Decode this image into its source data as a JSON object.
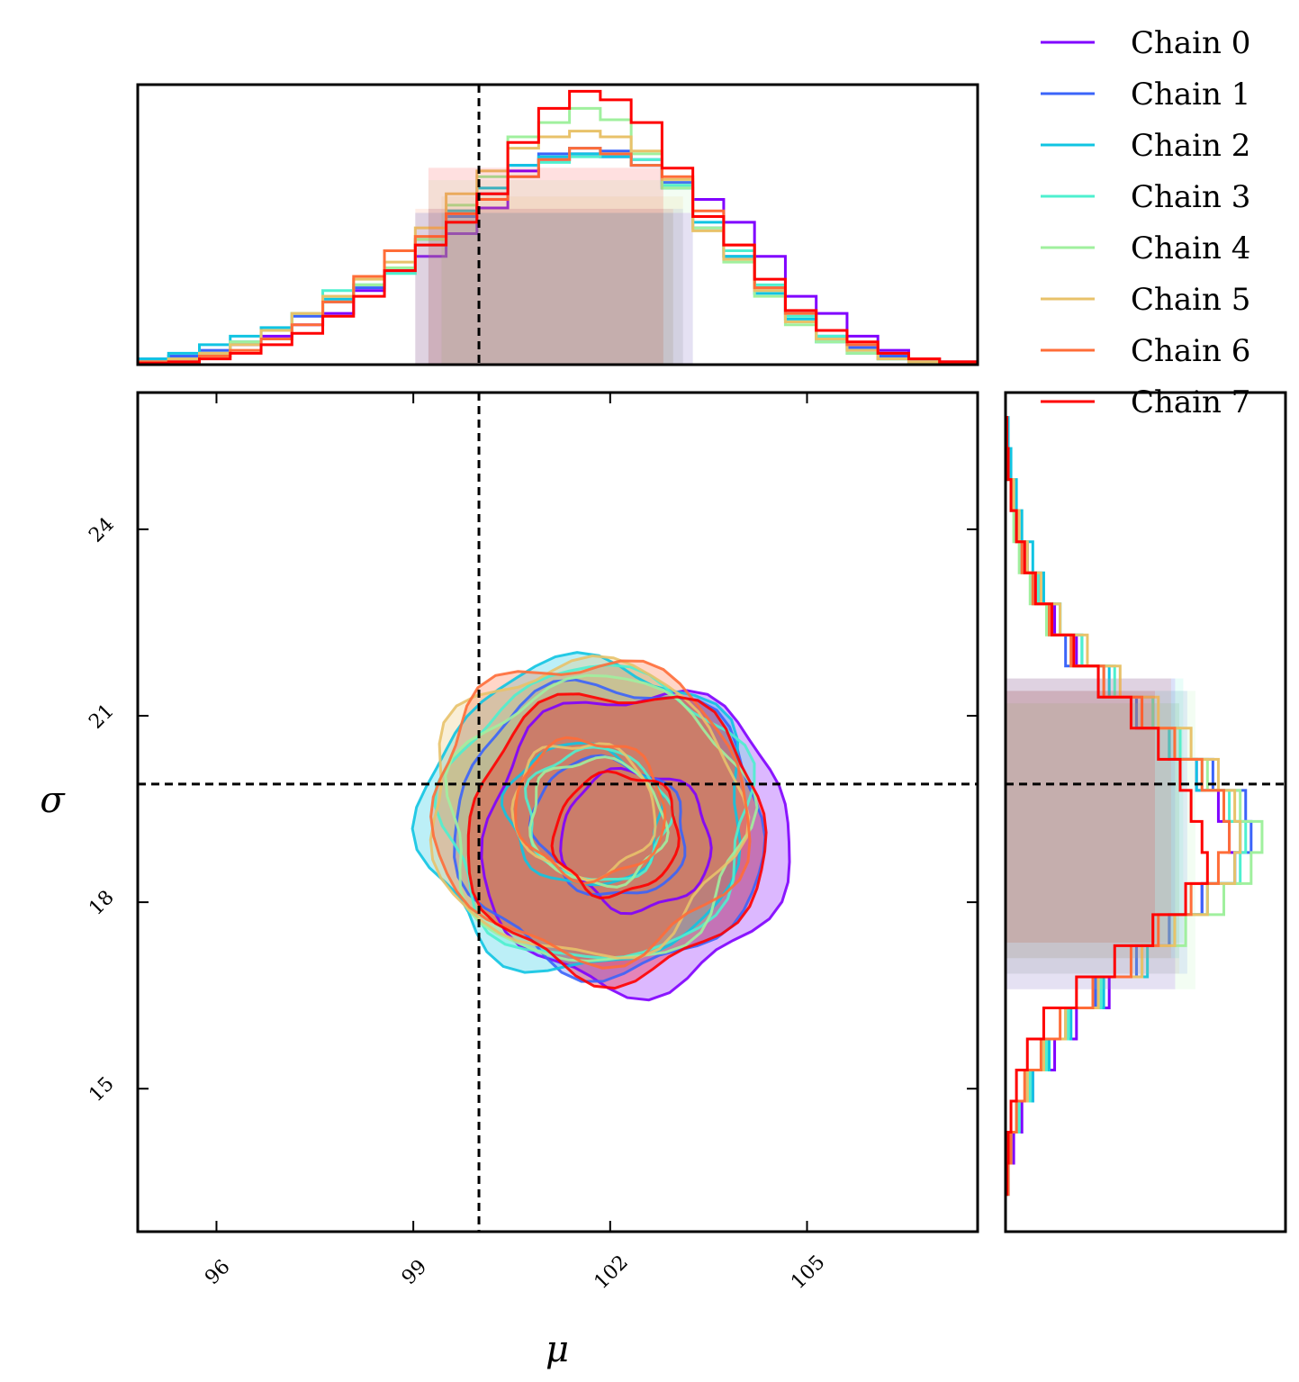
{
  "chart_data": {
    "type": "corner",
    "truth": {
      "mu": 100,
      "sigma": 19.9
    },
    "axes": {
      "mu": {
        "label": "μ",
        "range": [
          94.8,
          107.6
        ],
        "ticks": [
          "96",
          "99",
          "102",
          "105"
        ],
        "tick_values": [
          96,
          99,
          102,
          105
        ]
      },
      "sigma": {
        "label": "σ",
        "range": [
          12.7,
          26.2
        ],
        "ticks": [
          "15",
          "18",
          "21",
          "24"
        ],
        "tick_values": [
          15,
          18,
          21,
          24
        ]
      }
    },
    "legend": {
      "placement": "top-right",
      "entries": [
        "Chain 0",
        "Chain 1",
        "Chain 2",
        "Chain 3",
        "Chain 4",
        "Chain 5",
        "Chain 6",
        "Chain 7"
      ]
    },
    "colors": [
      "#8000ff",
      "#3b64f9",
      "#10c4e2",
      "#4ef0cf",
      "#a0f09e",
      "#e8c26a",
      "#ff6d38",
      "#ff0000"
    ],
    "mu_hist_edges": [
      94.8,
      95.27,
      95.74,
      96.21,
      96.68,
      97.15,
      97.62,
      98.09,
      98.56,
      99.03,
      99.5,
      99.97,
      100.44,
      100.91,
      101.38,
      101.85,
      102.32,
      102.79,
      103.26,
      103.73,
      104.2,
      104.67,
      105.14,
      105.61,
      106.08,
      106.55,
      107.02,
      107.6
    ],
    "mu_hist": [
      {
        "name": "Chain 0",
        "values": [
          0.01,
          0.02,
          0.04,
          0.07,
          0.1,
          0.14,
          0.18,
          0.26,
          0.33,
          0.38,
          0.46,
          0.55,
          0.68,
          0.72,
          0.74,
          0.73,
          0.7,
          0.62,
          0.58,
          0.5,
          0.38,
          0.24,
          0.18,
          0.1,
          0.05,
          0.02,
          0.01
        ]
      },
      {
        "name": "Chain 1",
        "values": [
          0.02,
          0.03,
          0.05,
          0.08,
          0.12,
          0.17,
          0.22,
          0.27,
          0.33,
          0.42,
          0.52,
          0.6,
          0.7,
          0.74,
          0.76,
          0.75,
          0.72,
          0.64,
          0.48,
          0.38,
          0.27,
          0.18,
          0.1,
          0.06,
          0.03,
          0.01,
          0.005
        ]
      },
      {
        "name": "Chain 2",
        "values": [
          0.02,
          0.04,
          0.07,
          0.1,
          0.13,
          0.18,
          0.23,
          0.28,
          0.34,
          0.44,
          0.54,
          0.62,
          0.7,
          0.73,
          0.74,
          0.73,
          0.7,
          0.62,
          0.5,
          0.38,
          0.25,
          0.16,
          0.08,
          0.04,
          0.02,
          0.01,
          0.005
        ]
      },
      {
        "name": "Chain 3",
        "values": [
          0.01,
          0.02,
          0.04,
          0.08,
          0.12,
          0.18,
          0.26,
          0.28,
          0.32,
          0.42,
          0.5,
          0.58,
          0.66,
          0.71,
          0.73,
          0.74,
          0.72,
          0.63,
          0.52,
          0.4,
          0.28,
          0.17,
          0.1,
          0.05,
          0.02,
          0.01,
          0.005
        ]
      },
      {
        "name": "Chain 4",
        "values": [
          0.01,
          0.02,
          0.04,
          0.08,
          0.12,
          0.18,
          0.24,
          0.28,
          0.34,
          0.44,
          0.56,
          0.66,
          0.8,
          0.85,
          0.9,
          0.86,
          0.74,
          0.62,
          0.48,
          0.36,
          0.24,
          0.14,
          0.08,
          0.04,
          0.02,
          0.01,
          0.005
        ]
      },
      {
        "name": "Chain 5",
        "values": [
          0.01,
          0.02,
          0.04,
          0.07,
          0.12,
          0.18,
          0.24,
          0.3,
          0.36,
          0.48,
          0.6,
          0.68,
          0.76,
          0.8,
          0.82,
          0.8,
          0.75,
          0.65,
          0.47,
          0.37,
          0.26,
          0.15,
          0.09,
          0.05,
          0.02,
          0.01,
          0.005
        ]
      },
      {
        "name": "Chain 6",
        "values": [
          0.01,
          0.01,
          0.03,
          0.05,
          0.09,
          0.14,
          0.22,
          0.31,
          0.4,
          0.45,
          0.53,
          0.58,
          0.66,
          0.72,
          0.76,
          0.74,
          0.7,
          0.66,
          0.54,
          0.42,
          0.27,
          0.18,
          0.12,
          0.07,
          0.04,
          0.02,
          0.01
        ]
      },
      {
        "name": "Chain 7",
        "values": [
          0.005,
          0.01,
          0.02,
          0.04,
          0.07,
          0.11,
          0.17,
          0.24,
          0.33,
          0.42,
          0.5,
          0.6,
          0.78,
          0.9,
          0.96,
          0.93,
          0.85,
          0.69,
          0.52,
          0.42,
          0.3,
          0.19,
          0.12,
          0.08,
          0.04,
          0.02,
          0.01
        ]
      }
    ],
    "sigma_hist_edges": [
      13.3,
      13.8,
      14.3,
      14.8,
      15.3,
      15.8,
      16.3,
      16.8,
      17.3,
      17.8,
      18.3,
      18.8,
      19.3,
      19.8,
      20.3,
      20.8,
      21.3,
      21.8,
      22.3,
      22.8,
      23.3,
      23.8,
      24.3,
      24.8,
      25.3,
      25.8
    ],
    "sigma_hist": [
      {
        "name": "Chain 0",
        "values": [
          0.01,
          0.03,
          0.06,
          0.1,
          0.18,
          0.26,
          0.38,
          0.5,
          0.6,
          0.72,
          0.84,
          0.82,
          0.78,
          0.7,
          0.6,
          0.48,
          0.36,
          0.26,
          0.18,
          0.12,
          0.08,
          0.04,
          0.02,
          0.01,
          0.005
        ]
      },
      {
        "name": "Chain 1",
        "values": [
          0.01,
          0.02,
          0.05,
          0.08,
          0.15,
          0.22,
          0.33,
          0.48,
          0.6,
          0.72,
          0.84,
          0.9,
          0.88,
          0.76,
          0.62,
          0.48,
          0.34,
          0.22,
          0.16,
          0.1,
          0.06,
          0.04,
          0.02,
          0.01,
          0.005
        ]
      },
      {
        "name": "Chain 2",
        "values": [
          0.01,
          0.02,
          0.05,
          0.1,
          0.16,
          0.24,
          0.36,
          0.52,
          0.62,
          0.74,
          0.84,
          0.86,
          0.8,
          0.7,
          0.6,
          0.5,
          0.38,
          0.28,
          0.2,
          0.14,
          0.1,
          0.06,
          0.04,
          0.02,
          0.01
        ]
      },
      {
        "name": "Chain 3",
        "values": [
          0.01,
          0.02,
          0.05,
          0.09,
          0.15,
          0.23,
          0.35,
          0.5,
          0.62,
          0.74,
          0.86,
          0.88,
          0.82,
          0.72,
          0.64,
          0.54,
          0.4,
          0.28,
          0.2,
          0.12,
          0.08,
          0.05,
          0.03,
          0.01,
          0.005
        ]
      },
      {
        "name": "Chain 4",
        "values": [
          0.01,
          0.02,
          0.04,
          0.08,
          0.14,
          0.22,
          0.34,
          0.5,
          0.66,
          0.8,
          0.9,
          0.94,
          0.86,
          0.74,
          0.62,
          0.5,
          0.36,
          0.24,
          0.15,
          0.09,
          0.05,
          0.03,
          0.02,
          0.01,
          0.005
        ]
      },
      {
        "name": "Chain 5",
        "values": [
          0.01,
          0.02,
          0.04,
          0.08,
          0.14,
          0.22,
          0.34,
          0.5,
          0.62,
          0.74,
          0.84,
          0.86,
          0.84,
          0.78,
          0.68,
          0.56,
          0.42,
          0.3,
          0.2,
          0.13,
          0.08,
          0.05,
          0.03,
          0.01,
          0.005
        ]
      },
      {
        "name": "Chain 6",
        "values": [
          0.01,
          0.02,
          0.04,
          0.07,
          0.13,
          0.2,
          0.32,
          0.46,
          0.56,
          0.68,
          0.78,
          0.82,
          0.8,
          0.72,
          0.62,
          0.5,
          0.36,
          0.24,
          0.16,
          0.1,
          0.06,
          0.04,
          0.02,
          0.01,
          0.005
        ]
      },
      {
        "name": "Chain 7",
        "values": [
          0.005,
          0.01,
          0.02,
          0.04,
          0.08,
          0.14,
          0.26,
          0.4,
          0.54,
          0.66,
          0.74,
          0.72,
          0.68,
          0.64,
          0.56,
          0.46,
          0.34,
          0.25,
          0.17,
          0.11,
          0.07,
          0.04,
          0.02,
          0.01,
          0.005
        ]
      }
    ],
    "contours": [
      {
        "name": "Chain 0",
        "cx": 102.4,
        "cy": 19.0,
        "levels": [
          {
            "rx": 4.2,
            "ry": 4.4,
            "rot": -32,
            "fill": true
          },
          {
            "rx": 2.1,
            "ry": 2.0,
            "rot": -35,
            "fill": false
          }
        ]
      },
      {
        "name": "Chain 1",
        "cx": 102.0,
        "cy": 19.2,
        "levels": [
          {
            "rx": 4.3,
            "ry": 4.2,
            "rot": -33,
            "fill": true
          },
          {
            "rx": 2.2,
            "ry": 1.9,
            "rot": -35,
            "fill": false
          }
        ]
      },
      {
        "name": "Chain 2",
        "cx": 101.6,
        "cy": 19.4,
        "levels": [
          {
            "rx": 4.4,
            "ry": 4.6,
            "rot": -34,
            "fill": true
          },
          {
            "rx": 2.2,
            "ry": 2.0,
            "rot": -35,
            "fill": false
          }
        ]
      },
      {
        "name": "Chain 3",
        "cx": 101.8,
        "cy": 19.4,
        "levels": [
          {
            "rx": 4.2,
            "ry": 4.3,
            "rot": -34,
            "fill": true
          },
          {
            "rx": 2.0,
            "ry": 1.9,
            "rot": -36,
            "fill": false
          }
        ]
      },
      {
        "name": "Chain 4",
        "cx": 101.8,
        "cy": 19.3,
        "levels": [
          {
            "rx": 4.1,
            "ry": 4.2,
            "rot": -33,
            "fill": true
          },
          {
            "rx": 1.9,
            "ry": 1.8,
            "rot": -38,
            "fill": false
          }
        ]
      },
      {
        "name": "Chain 5",
        "cx": 101.6,
        "cy": 19.5,
        "levels": [
          {
            "rx": 4.3,
            "ry": 4.3,
            "rot": -33,
            "fill": true
          },
          {
            "rx": 2.0,
            "ry": 1.9,
            "rot": -36,
            "fill": false
          }
        ]
      },
      {
        "name": "Chain 6",
        "cx": 101.7,
        "cy": 19.5,
        "levels": [
          {
            "rx": 4.4,
            "ry": 4.3,
            "rot": -34,
            "fill": true
          },
          {
            "rx": 2.1,
            "ry": 2.0,
            "rot": -36,
            "fill": false
          }
        ]
      },
      {
        "name": "Chain 7",
        "cx": 102.1,
        "cy": 19.1,
        "levels": [
          {
            "rx": 4.1,
            "ry": 4.2,
            "rot": -30,
            "fill": true
          },
          {
            "rx": 1.7,
            "ry": 1.8,
            "rot": -28,
            "fill": false
          }
        ]
      }
    ]
  }
}
